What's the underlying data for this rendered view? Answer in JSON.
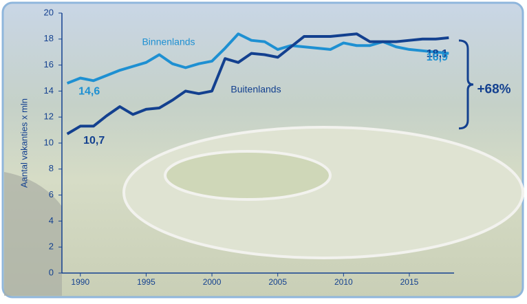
{
  "chart_data": {
    "type": "line",
    "y_label": "Aantal vakanties x mln",
    "x": [
      1989,
      1990,
      1991,
      1992,
      1993,
      1994,
      1995,
      1996,
      1997,
      1998,
      1999,
      2000,
      2001,
      2002,
      2003,
      2004,
      2005,
      2006,
      2007,
      2008,
      2009,
      2010,
      2011,
      2012,
      2013,
      2014,
      2015,
      2016,
      2017,
      2018
    ],
    "series": [
      {
        "name": "Binnenlands",
        "color": "#1e90d2",
        "values": [
          14.6,
          15.0,
          14.8,
          15.2,
          15.6,
          15.9,
          16.2,
          16.8,
          16.1,
          15.8,
          16.1,
          16.3,
          17.3,
          18.4,
          17.9,
          17.8,
          17.2,
          17.5,
          17.4,
          17.3,
          17.2,
          17.7,
          17.5,
          17.5,
          17.8,
          17.4,
          17.2,
          17.1,
          17.0,
          16.9
        ]
      },
      {
        "name": "Buitenlands",
        "color": "#13408f",
        "values": [
          10.7,
          11.3,
          11.3,
          12.1,
          12.8,
          12.2,
          12.6,
          12.7,
          13.3,
          14.0,
          13.8,
          14.0,
          16.5,
          16.2,
          16.9,
          16.8,
          16.6,
          17.4,
          18.2,
          18.2,
          18.2,
          18.3,
          18.4,
          17.8,
          17.8,
          17.8,
          17.9,
          18.0,
          18.0,
          18.1
        ]
      }
    ],
    "annotations": [
      "14,6",
      "10,7",
      "18,1",
      "16,9",
      "+68%"
    ],
    "xlim": [
      1988.6,
      2018.4
    ],
    "xticks": [
      1990,
      1995,
      2000,
      2005,
      2010,
      2015
    ],
    "ylim": [
      0,
      20
    ],
    "yticks": [
      0,
      2,
      4,
      6,
      8,
      10,
      12,
      14,
      16,
      18,
      20
    ]
  }
}
